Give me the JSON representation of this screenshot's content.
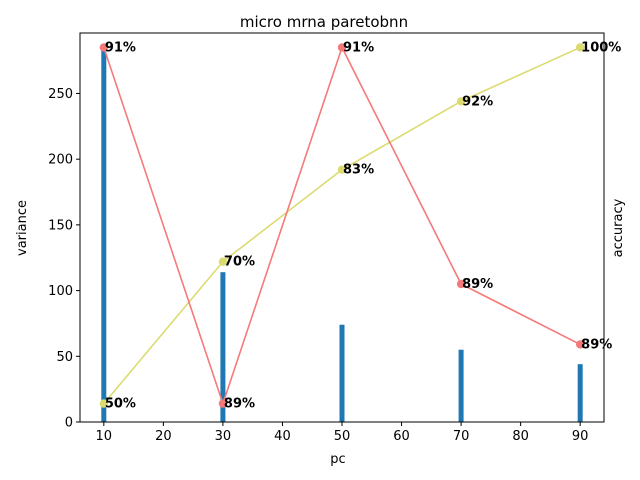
{
  "chart_data": {
    "type": "bar+line",
    "title": "micro mrna paretobnn",
    "xlabel": "pc",
    "ylabel": "variance",
    "y2label": "accuracy",
    "x": [
      10,
      30,
      50,
      70,
      90
    ],
    "xlim": [
      6,
      94
    ],
    "xticks": [
      "10",
      "20",
      "30",
      "40",
      "50",
      "60",
      "70",
      "80",
      "90"
    ],
    "ylim": [
      0,
      296
    ],
    "yticks": [
      "0",
      "50",
      "100",
      "150",
      "200",
      "250"
    ],
    "bars": {
      "values": [
        285,
        114,
        74,
        55,
        44
      ],
      "color": "#1f77b4"
    },
    "cumulative_line": {
      "values": [
        14,
        122,
        192,
        244,
        285
      ],
      "labels": [
        "50%",
        "70%",
        "83%",
        "92%",
        "100%"
      ],
      "color": "#dbdb70"
    },
    "accuracy_line": {
      "values": [
        285,
        14,
        285,
        105,
        59
      ],
      "labels": [
        "91%",
        "89%",
        "91%",
        "89%",
        "89%"
      ],
      "color": "#f47a7a"
    },
    "y2label_color": "#ff0000",
    "grid": false
  }
}
